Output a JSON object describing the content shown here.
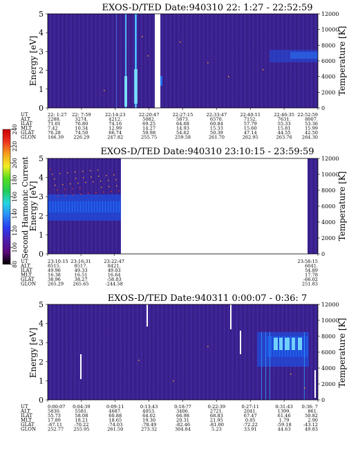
{
  "colors": {
    "background": "#3a1f8c",
    "texture_dark": "#2c1a78",
    "texture_light": "#4a34b0",
    "band": "#1f6cf0",
    "band_bright": "#2fa8ff",
    "hot": "#7fe8ff",
    "gap": "#ffffff"
  },
  "colorbar": {
    "label": "Second Harmonic Current",
    "ticks": [
      "80",
      "100",
      "120",
      "140",
      "160",
      "180",
      "200",
      "220",
      "240"
    ],
    "min": 80,
    "max": 240,
    "stops": [
      "#000000",
      "#5a0a7a",
      "#4b1fb0",
      "#2a3cf0",
      "#2b8cf5",
      "#25d6e0",
      "#22cc55",
      "#55dd22",
      "#f2ee22",
      "#f5a020",
      "#ee3322",
      "#cc0000"
    ]
  },
  "chart_data": [
    {
      "type": "heatmap",
      "title": "EXOS-D/TED   Date:940310  22: 1:27 - 22:52:59",
      "ylabel": "Energy [eV]",
      "ylabel_right": "Temperature [K]",
      "ylim": [
        0,
        5
      ],
      "ylim_right": [
        0,
        12000
      ],
      "yticks": [
        "0",
        "1",
        "2",
        "3",
        "4",
        "5"
      ],
      "yticks_right": [
        "0",
        "2000",
        "4000",
        "6000",
        "8000",
        "10000",
        "12000"
      ],
      "orbit_labels": [
        "UT",
        "ALT",
        "ILAT",
        "MLT",
        "GLAT",
        "GLON"
      ],
      "orbit_columns": [
        [
          "22: 1:27",
          "2288.",
          "71.01",
          "7.42",
          "76.28",
          "166.39"
        ],
        [
          "22: 7:59",
          "3274.",
          "76.80",
          "10.34",
          "74.50",
          "226.29"
        ],
        [
          "22:14:23",
          "4212.",
          "74.16",
          "12.99",
          "66.74",
          "247.82"
        ],
        [
          "22:20:47",
          "5082.",
          "69.25",
          "14.27",
          "59.98",
          "255.75"
        ],
        [
          "22:27:15",
          "5873.",
          "64.68",
          "14.93",
          "54.62",
          "259.58"
        ],
        [
          "22:33:47",
          "6570.",
          "60.84",
          "15.33",
          "50.39",
          "261.70"
        ],
        [
          "22:40:11",
          "7152.",
          "57.79",
          "15.60",
          "47.14",
          "262.95"
        ],
        [
          "22:46:35",
          "7631.",
          "55.33",
          "15.81",
          "44.55",
          "263.76"
        ],
        [
          "22:52:59",
          "8007.",
          "53.36",
          "15.99",
          "42.50",
          "264.30"
        ]
      ]
    },
    {
      "type": "heatmap",
      "title": "EXOS-D/TED   Date:940310  23:10:15 - 23:59:59",
      "ylabel": "Energy [eV]",
      "ylabel_right": "Temperature [K]",
      "ylim": [
        0,
        5
      ],
      "ylim_right": [
        0,
        12000
      ],
      "yticks": [
        "0",
        "1",
        "2",
        "3",
        "4",
        "5"
      ],
      "yticks_right": [
        "0",
        "2000",
        "4000",
        "6000",
        "8000",
        "10000",
        "12000"
      ],
      "orbit_labels": [
        "UT",
        "ALT",
        "ILAT",
        "MLT",
        "GLAT",
        "GLON"
      ],
      "orbit_columns": [
        [
          "23:10:15",
          "8515.",
          "49.96",
          "16.38",
          "38.96",
          "265.29"
        ],
        [
          "23:16:31",
          "8517.",
          "49.33",
          "16.51",
          "38.27",
          "265.65"
        ],
        [
          "23:22:47",
          "8421.",
          "49.03",
          "16.64",
          "-58.03",
          "-244.58"
        ],
        [
          "23:58:15",
          "6041.",
          "54.89",
          "17.78",
          "-66.02",
          "251.83"
        ]
      ]
    },
    {
      "type": "heatmap",
      "title": "EXOS-D/TED   Date:940311  0:00:07 - 0:36: 7",
      "ylabel": "Energy [eV]",
      "ylabel_right": "Temperature [K]",
      "ylim": [
        0,
        5
      ],
      "ylim_right": [
        0,
        12000
      ],
      "yticks": [
        "0",
        "1",
        "2",
        "3",
        "4",
        "5"
      ],
      "yticks_right": [
        "0",
        "2000",
        "4000",
        "6000",
        "8000",
        "10000",
        "12000"
      ],
      "orbit_labels": [
        "UT",
        "ALT",
        "ILAT",
        "MLT",
        "GLAT",
        "GLON"
      ],
      "orbit_columns": [
        [
          "0:00:07",
          "5830.",
          "55.73",
          "17.89",
          "-67.11",
          "252.77"
        ],
        [
          "0:04:39",
          "5581.",
          "58.08",
          "18.21",
          "-70.22",
          "255.95"
        ],
        [
          "0:09:11",
          "4687.",
          "60.88",
          "18.65",
          "-74.03",
          "261.50"
        ],
        [
          "0:13:43",
          "4053.",
          "64.02",
          "19.30",
          "-78.49",
          "273.32"
        ],
        [
          "0:18:?7",
          "3406.",
          "66.98",
          "20.31",
          "-82.46",
          "304.84"
        ],
        [
          "0:22:39",
          "2721.",
          "68.83",
          "21.95",
          "-81.00",
          "5.23"
        ],
        [
          "0:27:11",
          "2041.",
          "67.47",
          "0.05",
          "-72.22",
          "33.91"
        ],
        [
          "0:31:43",
          "1399.",
          "61.46",
          "1.79",
          "-59.18",
          "44.63"
        ],
        [
          "0:36: 7",
          "861.",
          "50.82",
          "2.90",
          "-43.12",
          "49.83"
        ]
      ]
    }
  ]
}
